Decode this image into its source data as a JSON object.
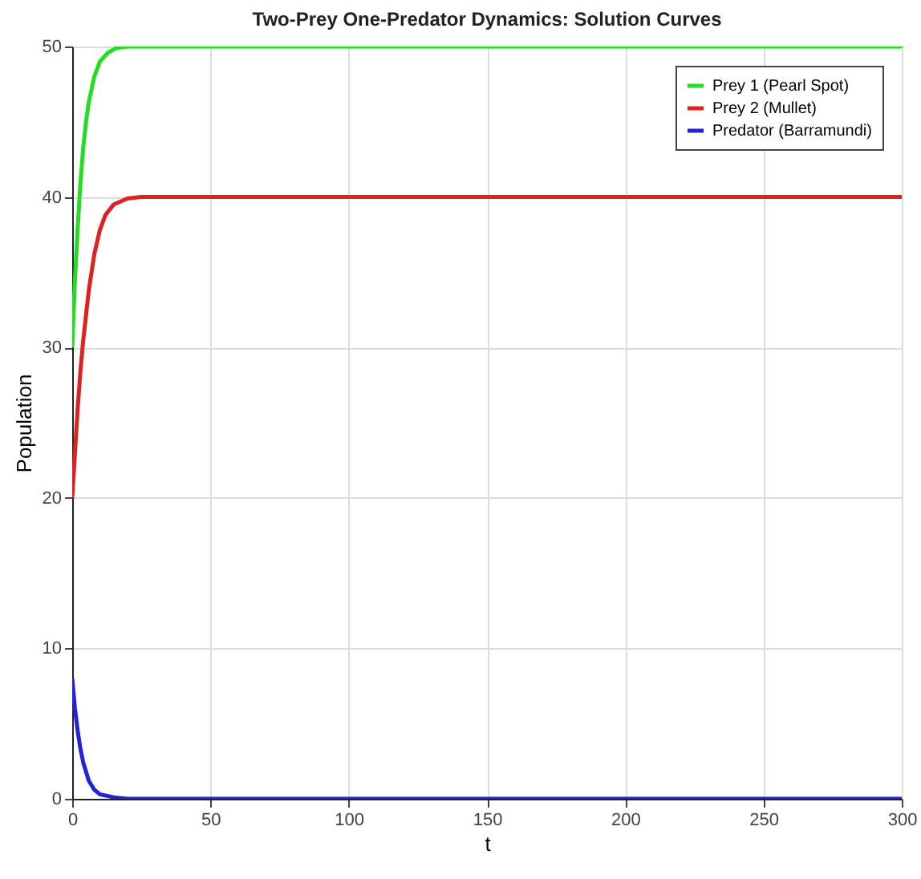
{
  "chart_data": {
    "type": "line",
    "title": "Two-Prey One-Predator Dynamics: Solution Curves",
    "xlabel": "t",
    "ylabel": "Population",
    "xlim": [
      0,
      300
    ],
    "ylim": [
      0,
      50
    ],
    "xticks": [
      0,
      50,
      100,
      150,
      200,
      250,
      300
    ],
    "yticks": [
      0,
      10,
      20,
      30,
      40,
      50
    ],
    "grid": true,
    "legend": "top right",
    "line_style": "solid",
    "marker": "none",
    "series": [
      {
        "name": "Prey 1 (Pearl Spot)",
        "color": "#22dd22",
        "x": [
          0,
          1,
          2,
          3,
          4,
          5,
          6,
          8,
          10,
          13,
          16,
          20,
          300
        ],
        "values": [
          30,
          34.5,
          38,
          41,
          43.3,
          45,
          46.3,
          48,
          49,
          49.6,
          49.9,
          50,
          50
        ]
      },
      {
        "name": "Prey 2 (Mullet)",
        "color": "#dd2222",
        "x": [
          0,
          1,
          2,
          3,
          4,
          6,
          8,
          10,
          12,
          15,
          20,
          25,
          300
        ],
        "values": [
          20,
          23,
          26,
          28.5,
          30.5,
          33.8,
          36.2,
          37.8,
          38.8,
          39.5,
          39.9,
          40,
          40
        ]
      },
      {
        "name": "Predator (Barramundi)",
        "color": "#2222dd",
        "x": [
          0,
          1,
          2,
          3,
          4,
          6,
          8,
          10,
          15,
          20,
          300
        ],
        "values": [
          8,
          6,
          4.5,
          3.3,
          2.4,
          1.2,
          0.6,
          0.3,
          0.1,
          0,
          0
        ]
      }
    ]
  }
}
